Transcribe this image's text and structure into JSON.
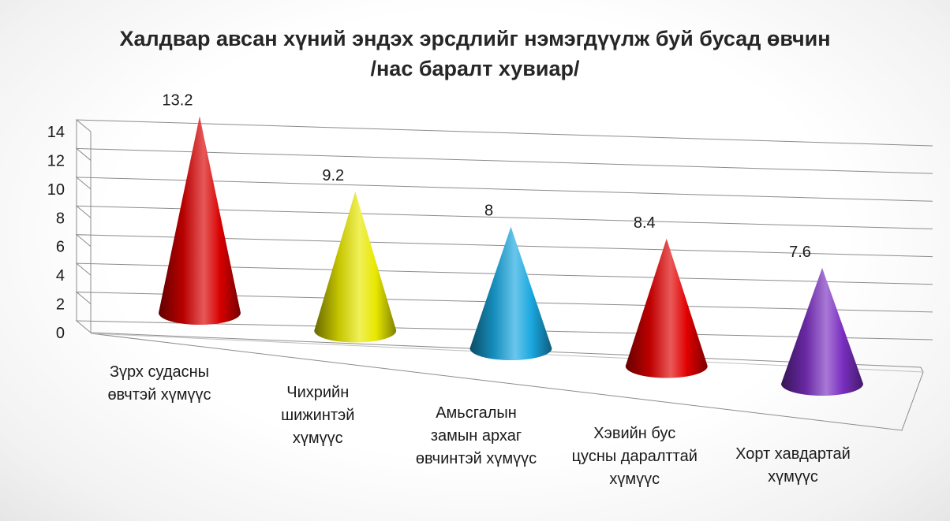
{
  "chart_data": {
    "type": "bar",
    "bar_shape": "cone",
    "view": "3d",
    "title": "Халдвар авсан хүний эндэх эрсдлийг нэмэгдүүлж буй бусад өвчин /нас баралт хувиар/",
    "title_lines": [
      "Халдвар авсан хүний эндэх эрсдлийг нэмэгдүүлж буй бусад өвчин",
      "/нас баралт хувиар/"
    ],
    "categories": [
      [
        "Зүрх судасны",
        "өвчтэй хүмүүс"
      ],
      [
        "Чихрийн",
        "шижинтэй",
        "хүмүүс"
      ],
      [
        "Амьсгалын",
        "замын архаг",
        "өвчинтэй хүмүүс"
      ],
      [
        "Хэвийн бус",
        "цусны даралттай",
        "хүмүүс"
      ],
      [
        "Хорт хавдартай",
        "хүмүүс"
      ]
    ],
    "values": [
      13.2,
      9.2,
      8,
      8.4,
      7.6
    ],
    "value_labels": [
      "13.2",
      "9.2",
      "8",
      "8.4",
      "7.6"
    ],
    "colors": [
      "#d80000",
      "#e8e800",
      "#1aa8e0",
      "#e00000",
      "#7a2fc0"
    ],
    "ylim": [
      0,
      14
    ],
    "yticks": [
      0,
      2,
      4,
      6,
      8,
      10,
      12,
      14
    ],
    "grid": true,
    "legend": "none"
  }
}
